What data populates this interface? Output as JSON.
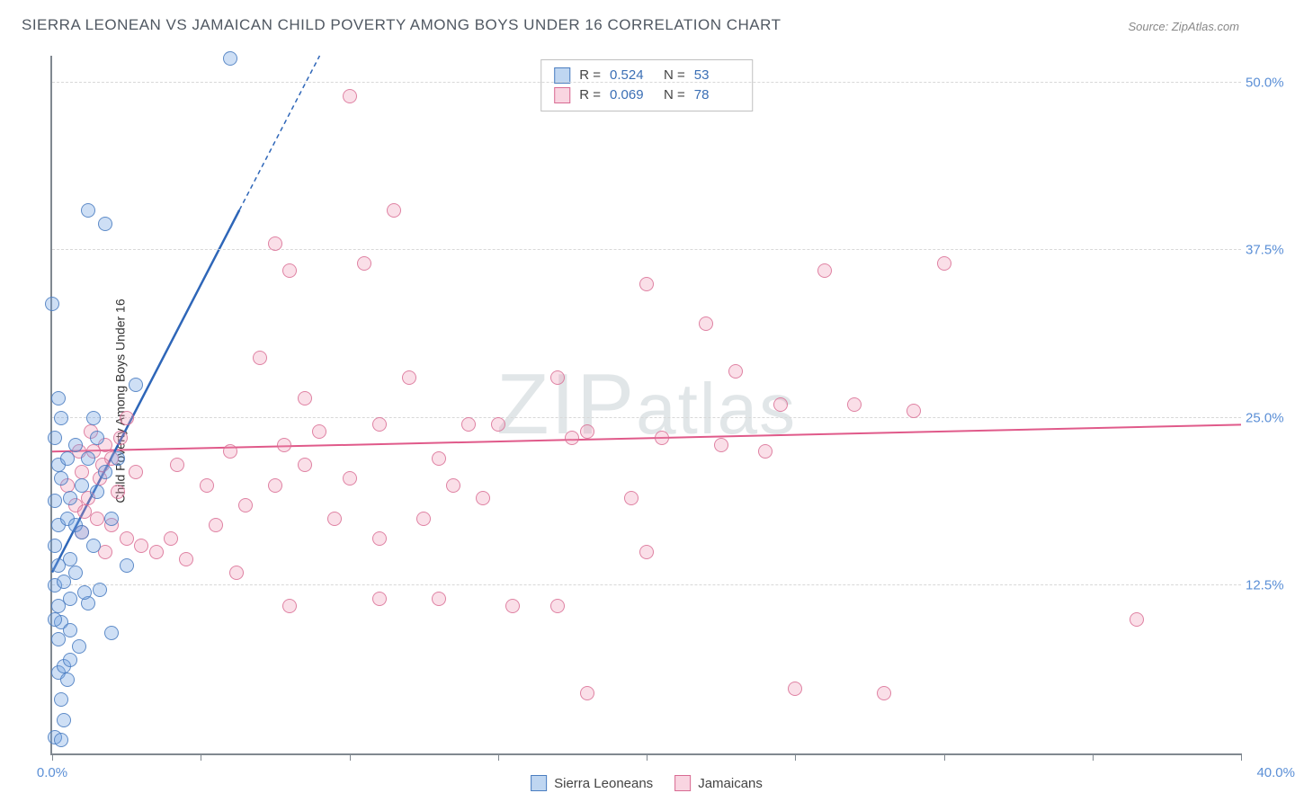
{
  "title": "SIERRA LEONEAN VS JAMAICAN CHILD POVERTY AMONG BOYS UNDER 16 CORRELATION CHART",
  "source": "Source: ZipAtlas.com",
  "ylabel": "Child Poverty Among Boys Under 16",
  "watermark": "ZIPatlas",
  "chart": {
    "type": "scatter",
    "xlim": [
      0,
      40
    ],
    "ylim": [
      0,
      52
    ],
    "xtick_positions": [
      0,
      5,
      10,
      15,
      20,
      25,
      30,
      35,
      40
    ],
    "xtick_labels_shown": {
      "0": "0.0%",
      "40": "40.0%"
    },
    "ytick_step": 12.5,
    "ytick_labels": [
      "12.5%",
      "25.0%",
      "37.5%",
      "50.0%"
    ],
    "grid_color": "#d8d8d8",
    "axis_color": "#808890",
    "background_color": "#ffffff",
    "label_color": "#5b8fd6",
    "point_radius": 8
  },
  "series": {
    "blue": {
      "name": "Sierra Leoneans",
      "color_fill": "rgba(114,163,225,0.35)",
      "color_stroke": "#4a7dc0",
      "R": "0.524",
      "N": "53",
      "trend": {
        "x1": 0,
        "y1": 13.5,
        "x2": 6.3,
        "y2": 40.5,
        "dash_to_x": 9.0,
        "dash_to_y": 52.0,
        "stroke": "#2e66b8",
        "width": 2.5
      },
      "points": [
        [
          0.1,
          1.2
        ],
        [
          0.3,
          1.0
        ],
        [
          0.4,
          2.5
        ],
        [
          0.2,
          6.0
        ],
        [
          0.4,
          6.5
        ],
        [
          0.6,
          7.0
        ],
        [
          0.2,
          8.5
        ],
        [
          0.3,
          9.8
        ],
        [
          0.6,
          9.2
        ],
        [
          0.1,
          10.0
        ],
        [
          0.2,
          11.0
        ],
        [
          0.6,
          11.5
        ],
        [
          1.2,
          11.2
        ],
        [
          0.1,
          12.5
        ],
        [
          0.4,
          12.8
        ],
        [
          1.6,
          12.2
        ],
        [
          0.2,
          14.0
        ],
        [
          0.6,
          14.5
        ],
        [
          0.1,
          15.5
        ],
        [
          2.0,
          9.0
        ],
        [
          0.2,
          17.0
        ],
        [
          0.5,
          17.5
        ],
        [
          0.8,
          17.0
        ],
        [
          0.1,
          18.8
        ],
        [
          0.6,
          19.0
        ],
        [
          0.3,
          20.5
        ],
        [
          1.0,
          20.0
        ],
        [
          0.2,
          21.5
        ],
        [
          0.5,
          22.0
        ],
        [
          1.2,
          22.0
        ],
        [
          0.1,
          23.5
        ],
        [
          0.8,
          23.0
        ],
        [
          0.3,
          25.0
        ],
        [
          1.4,
          25.0
        ],
        [
          0.2,
          26.5
        ],
        [
          0.0,
          33.5
        ],
        [
          1.2,
          40.5
        ],
        [
          1.8,
          39.5
        ],
        [
          2.8,
          27.5
        ],
        [
          1.5,
          19.5
        ],
        [
          1.8,
          21.0
        ],
        [
          2.2,
          22.0
        ],
        [
          2.0,
          17.5
        ],
        [
          1.4,
          15.5
        ],
        [
          2.5,
          14.0
        ],
        [
          0.8,
          13.5
        ],
        [
          1.0,
          16.5
        ],
        [
          1.5,
          23.5
        ],
        [
          6.0,
          51.8
        ],
        [
          0.9,
          8.0
        ],
        [
          0.5,
          5.5
        ],
        [
          0.3,
          4.0
        ],
        [
          1.1,
          12.0
        ]
      ]
    },
    "pink": {
      "name": "Jamaicans",
      "color_fill": "rgba(240,150,180,0.3)",
      "color_stroke": "#d86a92",
      "R": "0.069",
      "N": "78",
      "trend": {
        "x1": 0,
        "y1": 22.5,
        "x2": 40,
        "y2": 24.5,
        "stroke": "#e05a8a",
        "width": 2
      },
      "points": [
        [
          0.5,
          20.0
        ],
        [
          0.8,
          18.5
        ],
        [
          1.0,
          21.0
        ],
        [
          1.2,
          19.0
        ],
        [
          1.4,
          22.5
        ],
        [
          1.5,
          17.5
        ],
        [
          1.6,
          20.5
        ],
        [
          1.8,
          23.0
        ],
        [
          1.0,
          16.5
        ],
        [
          1.3,
          24.0
        ],
        [
          2.0,
          22.0
        ],
        [
          2.2,
          19.5
        ],
        [
          2.5,
          25.0
        ],
        [
          2.0,
          17.0
        ],
        [
          2.8,
          21.0
        ],
        [
          3.5,
          15.0
        ],
        [
          4.0,
          16.0
        ],
        [
          4.5,
          14.5
        ],
        [
          5.2,
          20.0
        ],
        [
          7.5,
          38.0
        ],
        [
          6.0,
          22.5
        ],
        [
          6.5,
          18.5
        ],
        [
          7.0,
          29.5
        ],
        [
          7.5,
          20.0
        ],
        [
          8.0,
          36.0
        ],
        [
          8.5,
          26.5
        ],
        [
          8.0,
          11.0
        ],
        [
          9.0,
          24.0
        ],
        [
          10.0,
          49.0
        ],
        [
          10.5,
          36.5
        ],
        [
          10.0,
          20.5
        ],
        [
          11.0,
          11.5
        ],
        [
          11.5,
          40.5
        ],
        [
          11.0,
          24.5
        ],
        [
          12.0,
          28.0
        ],
        [
          12.5,
          17.5
        ],
        [
          13.0,
          22.0
        ],
        [
          13.5,
          20.0
        ],
        [
          14.0,
          24.5
        ],
        [
          14.5,
          19.0
        ],
        [
          11.0,
          16.0
        ],
        [
          15.5,
          11.0
        ],
        [
          13.0,
          11.5
        ],
        [
          17.0,
          28.0
        ],
        [
          18.0,
          24.0
        ],
        [
          18.0,
          4.5
        ],
        [
          19.5,
          19.0
        ],
        [
          20.0,
          35.0
        ],
        [
          20.5,
          23.5
        ],
        [
          20.0,
          15.0
        ],
        [
          22.0,
          32.0
        ],
        [
          22.5,
          23.0
        ],
        [
          23.0,
          28.5
        ],
        [
          24.0,
          22.5
        ],
        [
          24.5,
          26.0
        ],
        [
          25.0,
          4.8
        ],
        [
          26.0,
          36.0
        ],
        [
          27.0,
          26.0
        ],
        [
          28.0,
          4.5
        ],
        [
          29.0,
          25.5
        ],
        [
          30.0,
          36.5
        ],
        [
          8.5,
          21.5
        ],
        [
          3.0,
          15.5
        ],
        [
          5.5,
          17.0
        ],
        [
          6.2,
          13.5
        ],
        [
          7.8,
          23.0
        ],
        [
          9.5,
          17.5
        ],
        [
          4.2,
          21.5
        ],
        [
          2.5,
          16.0
        ],
        [
          1.8,
          15.0
        ],
        [
          0.9,
          22.5
        ],
        [
          1.1,
          18.0
        ],
        [
          1.7,
          21.5
        ],
        [
          2.3,
          23.5
        ],
        [
          36.5,
          10.0
        ],
        [
          17.5,
          23.5
        ],
        [
          17.0,
          11.0
        ],
        [
          15.0,
          24.5
        ]
      ]
    }
  },
  "legend_bottom": [
    "Sierra Leoneans",
    "Jamaicans"
  ],
  "legend_top_labels": {
    "R": "R =",
    "N": "N ="
  }
}
